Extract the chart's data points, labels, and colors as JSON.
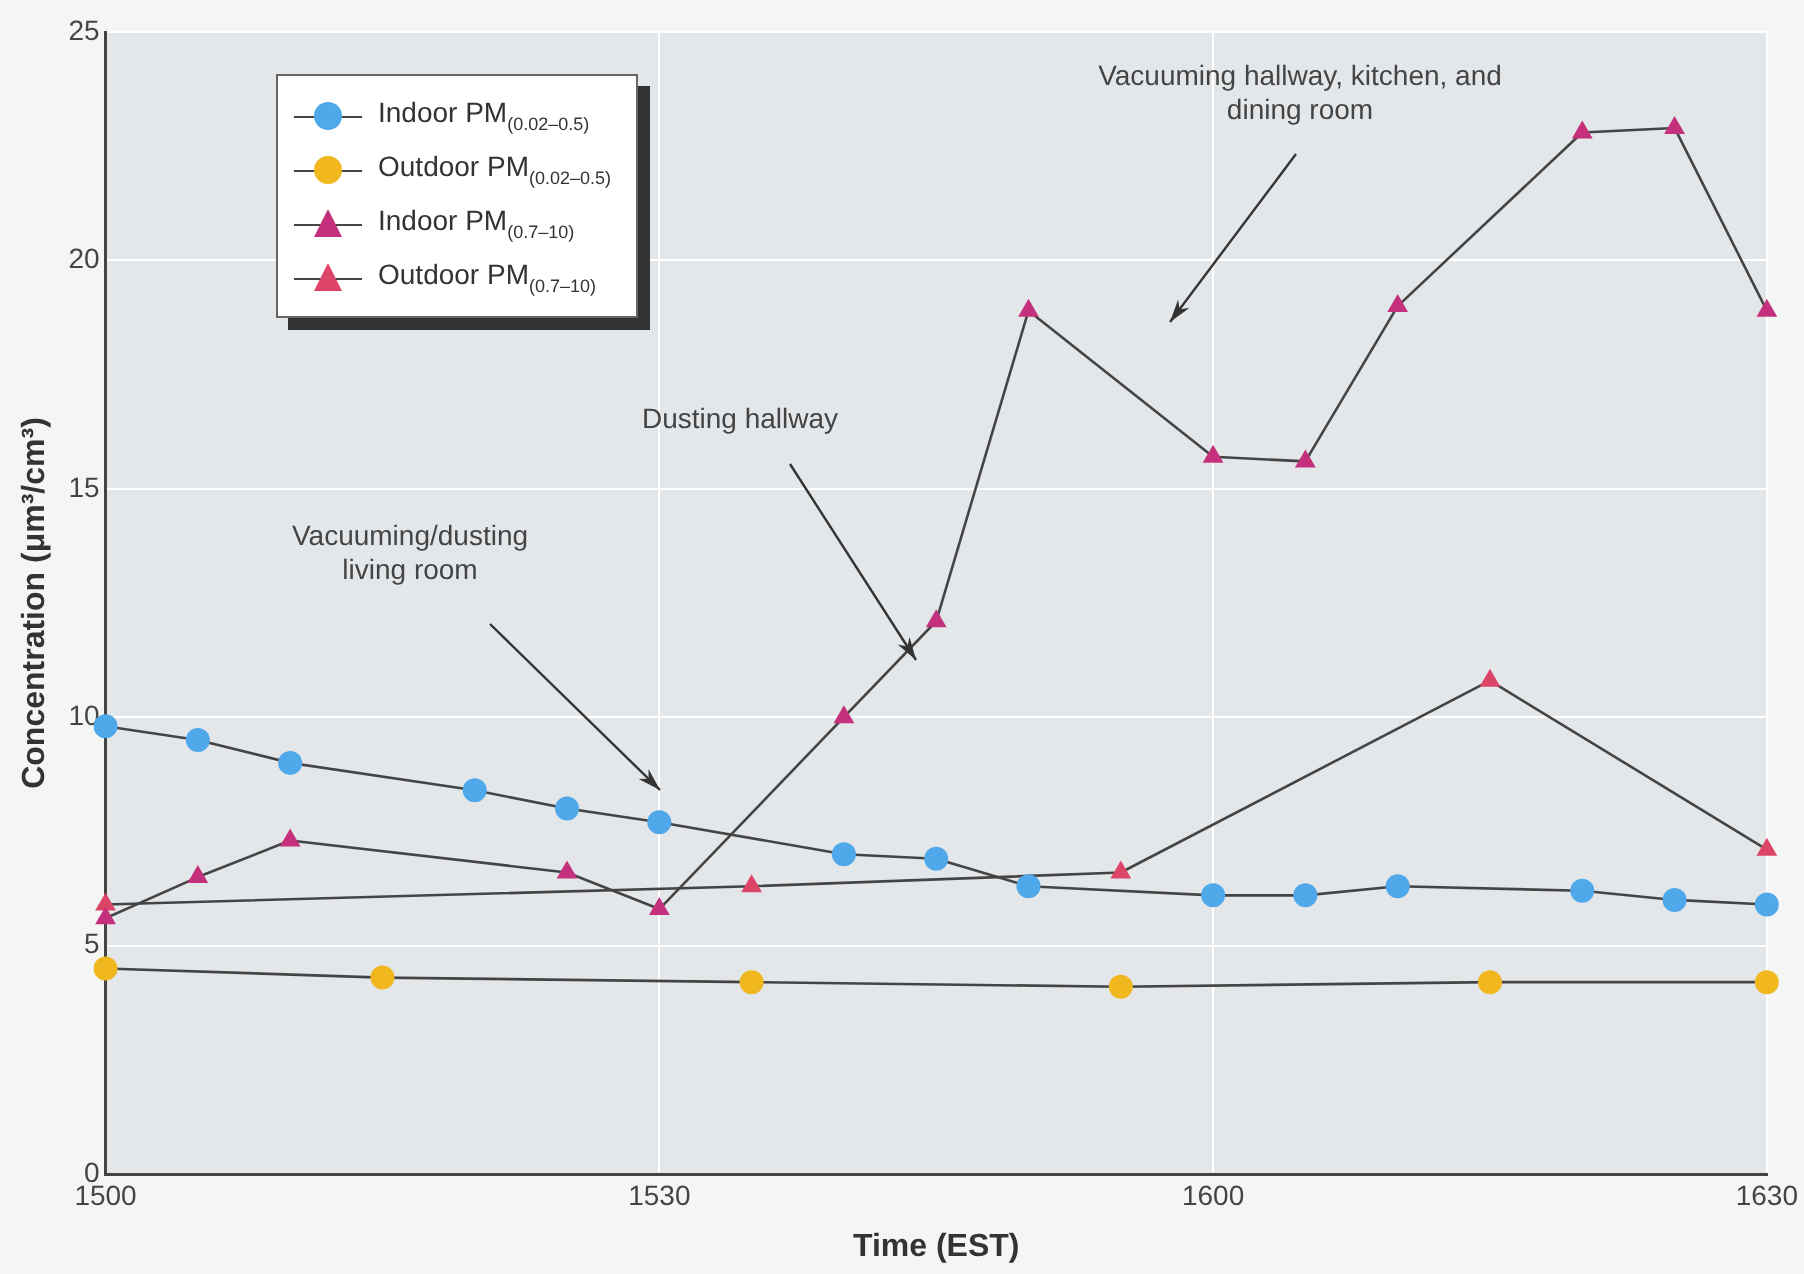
{
  "chart_data": {
    "type": "line",
    "xlabel": "Time (EST)",
    "ylabel": "Concentration (μm³/cm³)",
    "categories": [
      "1500",
      null,
      null,
      null,
      null,
      null,
      "1530",
      null,
      null,
      null,
      null,
      null,
      "1600",
      null,
      null,
      null,
      null,
      null,
      "1630"
    ],
    "ylim": [
      0,
      25
    ],
    "yticks": [
      0,
      5,
      10,
      15,
      20,
      25
    ],
    "grid": true,
    "legend": "top left",
    "line_style": "solid",
    "series": [
      {
        "name": "Indoor PM$_{(0.02–0.5)}$",
        "color": "#4ea8ea",
        "marker": "circle",
        "values": [
          9.8,
          9.5,
          9.0,
          null,
          8.4,
          8.0,
          7.7,
          null,
          7.0,
          6.9,
          6.3,
          null,
          6.1,
          6.1,
          6.3,
          null,
          6.2,
          6.0,
          5.9
        ]
      },
      {
        "name": "Outdoor PM$_{(0.02–0.5)}$",
        "color": "#f0b81e",
        "marker": "circle",
        "values": [
          4.5,
          null,
          null,
          4.3,
          null,
          null,
          null,
          4.2,
          null,
          null,
          null,
          4.1,
          null,
          null,
          null,
          4.2,
          null,
          null,
          4.2
        ]
      },
      {
        "name": "Indoor PM$_{(0.7–10)}$",
        "color": "#c4307c",
        "marker": "triangle",
        "values": [
          5.6,
          6.5,
          7.3,
          null,
          null,
          6.6,
          5.8,
          null,
          10.0,
          12.1,
          18.9,
          null,
          15.7,
          15.6,
          19.0,
          null,
          22.8,
          22.9,
          18.9
        ]
      },
      {
        "name": "Outdoor PM$_{(0.7–10)}$",
        "color": "#dc4468",
        "marker": "triangle",
        "values": [
          5.9,
          null,
          null,
          null,
          null,
          null,
          null,
          6.3,
          null,
          null,
          null,
          6.6,
          null,
          null,
          null,
          10.8,
          null,
          null,
          7.1
        ]
      }
    ],
    "annotations": [
      "Vacuuming/dusting living room",
      "Dusting hallway",
      "Vacuuming hallway, kitchen, and dining room"
    ]
  }
}
